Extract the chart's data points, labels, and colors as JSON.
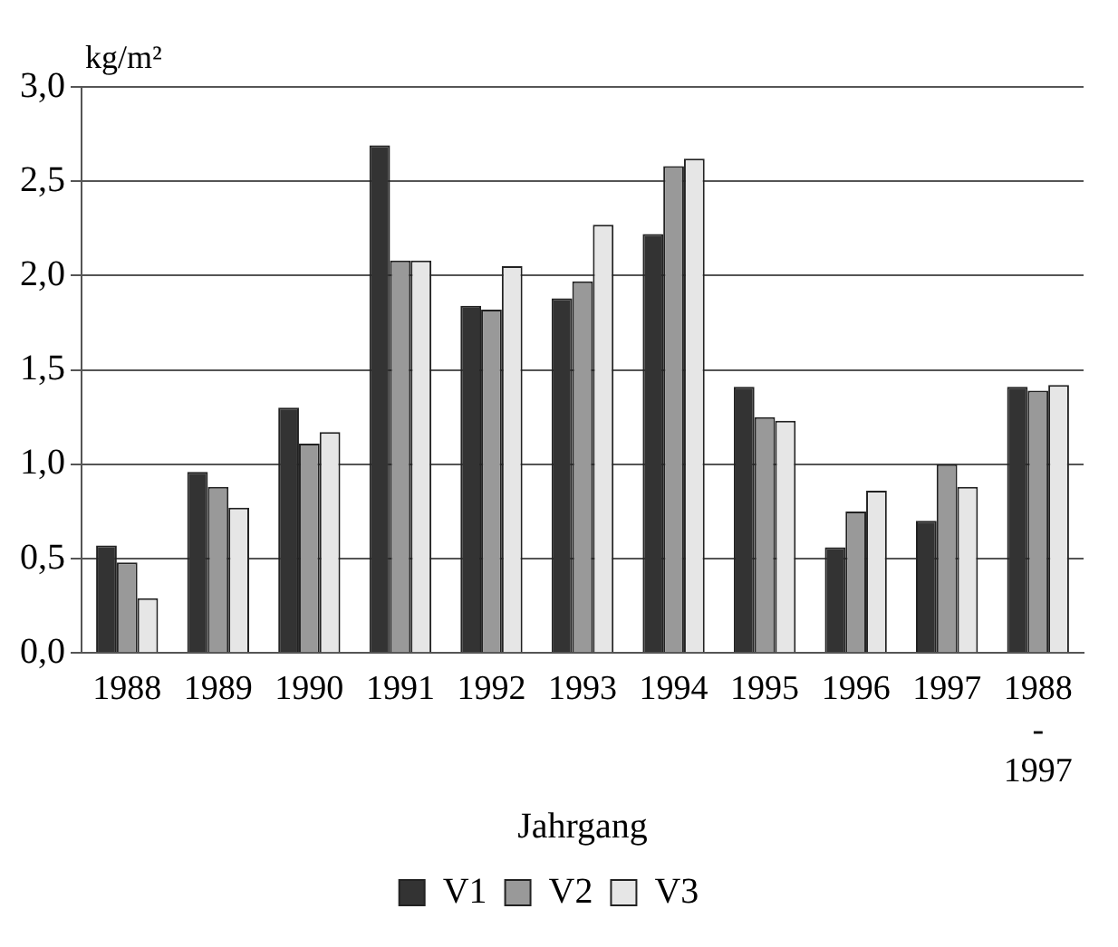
{
  "chart_data": {
    "type": "bar",
    "ylabel": "kg/m²",
    "xlabel": "Jahrgang",
    "categories": [
      "1988",
      "1989",
      "1990",
      "1991",
      "1992",
      "1993",
      "1994",
      "1995",
      "1996",
      "1997",
      "1988-1997"
    ],
    "series": [
      {
        "name": "V1",
        "color": "#333333",
        "values": [
          0.57,
          0.96,
          1.3,
          2.69,
          1.84,
          1.88,
          2.22,
          1.41,
          0.56,
          0.7,
          1.41
        ]
      },
      {
        "name": "V2",
        "color": "#999999",
        "values": [
          0.48,
          0.88,
          1.11,
          2.08,
          1.82,
          1.97,
          2.58,
          1.25,
          0.75,
          1.0,
          1.39
        ]
      },
      {
        "name": "V3",
        "color": "#e6e6e6",
        "values": [
          0.29,
          0.77,
          1.17,
          2.08,
          2.05,
          2.27,
          2.62,
          1.23,
          0.86,
          0.88,
          1.42
        ]
      }
    ],
    "ylim": [
      0,
      3
    ],
    "yticks": [
      {
        "value": 0,
        "label": "0,0"
      },
      {
        "value": 0.5,
        "label": "0,5"
      },
      {
        "value": 1,
        "label": "1,0"
      },
      {
        "value": 1.5,
        "label": "1,5"
      },
      {
        "value": 2,
        "label": "2,0"
      },
      {
        "value": 2.5,
        "label": "2,5"
      },
      {
        "value": 3,
        "label": "3,0"
      }
    ],
    "grid": "y",
    "legend": "bottom"
  }
}
